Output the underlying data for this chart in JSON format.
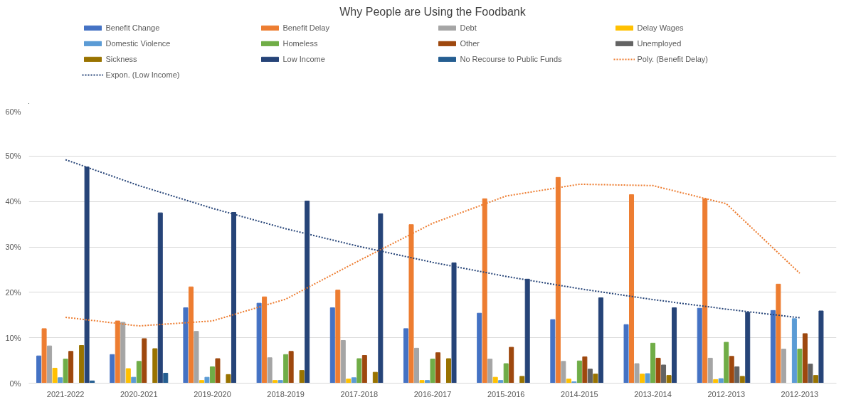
{
  "chart_data": {
    "type": "bar",
    "title": "Why People are Using the Foodbank",
    "categories": [
      "2021-2022",
      "2020-2021",
      "2019-2020",
      "2018-2019",
      "2017-2018",
      "2016-2017",
      "2015-2016",
      "2014-2015",
      "2013-2014",
      "2012-2013",
      "2012-2013"
    ],
    "series": [
      {
        "name": "Benefit Change",
        "color": "#4472c4",
        "values": [
          6.0,
          6.3,
          16.6,
          17.6,
          16.6,
          12.0,
          15.4,
          14.0,
          12.9,
          16.5,
          16.0
        ]
      },
      {
        "name": "Benefit Delay",
        "color": "#ed7d31",
        "values": [
          12.0,
          13.7,
          21.2,
          19.0,
          20.5,
          34.9,
          40.6,
          45.3,
          41.5,
          40.6,
          21.8
        ]
      },
      {
        "name": "Debt",
        "color": "#a5a5a5",
        "values": [
          8.2,
          13.4,
          11.4,
          5.6,
          9.4,
          7.7,
          5.3,
          4.8,
          4.3,
          5.5,
          7.5
        ]
      },
      {
        "name": "Delay Wages",
        "color": "#ffc000",
        "values": [
          3.3,
          3.2,
          0.6,
          0.6,
          0.9,
          0.6,
          1.3,
          0.9,
          2.0,
          0.8,
          null
        ]
      },
      {
        "name": "Domestic Violence",
        "color": "#5b9bd5",
        "values": [
          1.2,
          1.3,
          1.3,
          0.6,
          1.2,
          0.6,
          0.6,
          0.3,
          2.1,
          1.0,
          14.2
        ]
      },
      {
        "name": "Homeless",
        "color": "#70ad47",
        "values": [
          5.3,
          4.8,
          3.6,
          6.3,
          5.4,
          5.3,
          4.3,
          4.9,
          8.8,
          9.0,
          7.5
        ]
      },
      {
        "name": "Other",
        "color": "#9e480e",
        "values": [
          7.0,
          9.8,
          5.4,
          7.0,
          6.1,
          6.7,
          7.9,
          5.8,
          5.5,
          5.9,
          10.9
        ]
      },
      {
        "name": "Unemployed",
        "color": "#636363",
        "values": [
          null,
          null,
          null,
          null,
          null,
          null,
          null,
          3.1,
          4.0,
          3.6,
          4.2
        ]
      },
      {
        "name": "Sickness",
        "color": "#997300",
        "values": [
          8.3,
          7.6,
          1.9,
          2.8,
          2.4,
          5.4,
          1.5,
          2.0,
          1.7,
          1.5,
          1.7
        ]
      },
      {
        "name": "Low Income",
        "color": "#264478",
        "values": [
          47.6,
          37.5,
          37.6,
          40.1,
          37.3,
          26.5,
          22.9,
          18.8,
          16.6,
          15.6,
          15.9
        ]
      },
      {
        "name": "No Recourse to Public Funds",
        "color": "#255e91",
        "values": [
          0.5,
          2.2,
          null,
          null,
          null,
          null,
          null,
          null,
          null,
          null,
          null
        ]
      },
      {
        "name": "Poly. (Benefit Delay)",
        "type": "line",
        "line_style": "dotted",
        "color": "#ed7d31",
        "values": [
          14.5,
          12.6,
          13.7,
          18.5,
          27.0,
          35.2,
          41.2,
          43.8,
          43.5,
          39.5,
          24.2
        ]
      },
      {
        "name": "Expon. (Low Income)",
        "type": "line",
        "line_style": "dotted",
        "color": "#264478",
        "values": [
          49.2,
          43.5,
          38.5,
          34.0,
          30.1,
          26.6,
          23.5,
          20.8,
          18.4,
          16.3,
          14.4
        ]
      }
    ],
    "ylim": [
      0,
      60
    ],
    "yticks": [
      {
        "value": 0,
        "label": "0%"
      },
      {
        "value": 10,
        "label": "10%"
      },
      {
        "value": 20,
        "label": "20%"
      },
      {
        "value": 30,
        "label": "30%"
      },
      {
        "value": 40,
        "label": "40%"
      },
      {
        "value": 50,
        "label": "50%"
      },
      {
        "value": 60,
        "label": "60%"
      }
    ],
    "grid": "y",
    "legend": "top"
  }
}
